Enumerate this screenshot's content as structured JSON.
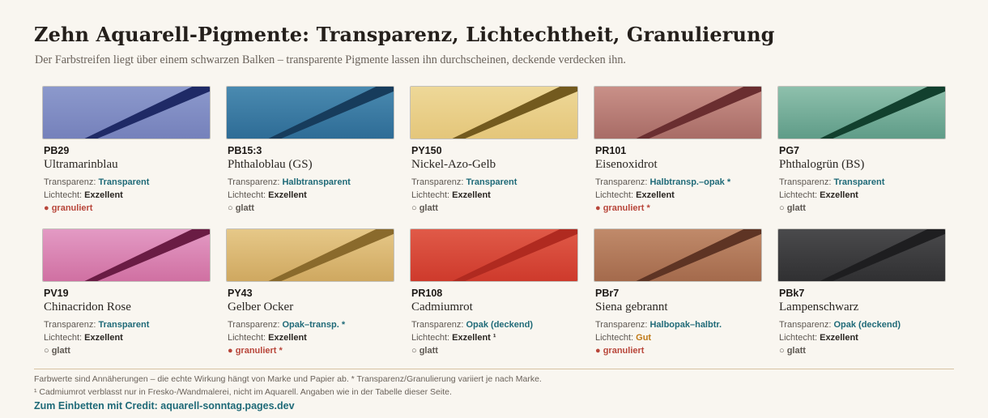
{
  "title": "Zehn Aquarell-Pigmente: Transparenz, Lichtechtheit, Granulierung",
  "subtitle": "Der Farbstreifen liegt über einem schwarzen Balken – transparente Pigmente lassen ihn durchscheinen, deckende verdecken ihn.",
  "labels": {
    "transparency": "Transparenz:",
    "lightfastness": "Lichtecht:"
  },
  "pigments": [
    {
      "code": "PB29",
      "name": "Ultramarinblau",
      "transparency": "Transparent",
      "opacity": 0.18,
      "lightfast": "Exzellent",
      "granulation": "granuliert",
      "granulates": true,
      "colors": [
        "#8c99cc",
        "#7581bb"
      ],
      "band": "#1f2a66"
    },
    {
      "code": "PB15:3",
      "name": "Phthaloblau (GS)",
      "transparency": "Halbtransparent",
      "opacity": 0.5,
      "lightfast": "Exzellent",
      "granulation": "glatt",
      "granulates": false,
      "colors": [
        "#4a8ab0",
        "#2e6c96"
      ],
      "band": "#173c5c"
    },
    {
      "code": "PY150",
      "name": "Nickel-Azo-Gelb",
      "transparency": "Transparent",
      "opacity": 0.2,
      "lightfast": "Exzellent",
      "granulation": "glatt",
      "granulates": false,
      "colors": [
        "#eed898",
        "#e4c67a"
      ],
      "band": "#735a1e"
    },
    {
      "code": "PR101",
      "name": "Eisenoxidrot",
      "transparency": "Halbtransp.–opak *",
      "opacity": 0.62,
      "lightfast": "Exzellent",
      "granulation": "granuliert *",
      "granulates": true,
      "colors": [
        "#c99088",
        "#a86c66"
      ],
      "band": "#6a2e30"
    },
    {
      "code": "PG7",
      "name": "Phthalogrün (BS)",
      "transparency": "Transparent",
      "opacity": 0.18,
      "lightfast": "Exzellent",
      "granulation": "glatt",
      "granulates": false,
      "colors": [
        "#8ec0ac",
        "#5f9c88"
      ],
      "band": "#12402e"
    },
    {
      "code": "PV19",
      "name": "Chinacridon Rose",
      "transparency": "Transparent",
      "opacity": 0.2,
      "lightfast": "Exzellent",
      "granulation": "glatt",
      "granulates": false,
      "colors": [
        "#e39ac4",
        "#d070a2"
      ],
      "band": "#6a1c44"
    },
    {
      "code": "PY43",
      "name": "Gelber Ocker",
      "transparency": "Opak–transp. *",
      "opacity": 0.68,
      "lightfast": "Exzellent",
      "granulation": "granuliert *",
      "granulates": true,
      "colors": [
        "#e6c888",
        "#cfa860"
      ],
      "band": "#8a6a2c"
    },
    {
      "code": "PR108",
      "name": "Cadmiumrot",
      "transparency": "Opak (deckend)",
      "opacity": 0.88,
      "lightfast": "Exzellent ¹",
      "granulation": "glatt",
      "granulates": false,
      "colors": [
        "#e05a48",
        "#ce3a2c"
      ],
      "band": "#b02a20"
    },
    {
      "code": "PBr7",
      "name": "Siena gebrannt",
      "transparency": "Halbopak–halbtr.",
      "opacity": 0.6,
      "lightfast": "Gut",
      "granulation": "granuliert",
      "granulates": true,
      "colors": [
        "#c08a6a",
        "#a46a4c"
      ],
      "band": "#5e3424"
    },
    {
      "code": "PBk7",
      "name": "Lampenschwarz",
      "transparency": "Opak (deckend)",
      "opacity": 0.9,
      "lightfast": "Exzellent",
      "granulation": "glatt",
      "granulates": false,
      "colors": [
        "#4a4a4c",
        "#303032"
      ],
      "band": "#1e1e20"
    }
  ],
  "footnote1": "Farbwerte sind Annäherungen – die echte Wirkung hängt von Marke und Papier ab. * Transparenz/Granulierung variiert je nach Marke.",
  "footnote2": "¹ Cadmiumrot verblasst nur in Fresko-/Wandmalerei, nicht im Aquarell. Angaben wie in der Tabelle dieser Seite.",
  "credit": "Zum Einbetten mit Credit: aquarell-sonntag.pages.dev"
}
